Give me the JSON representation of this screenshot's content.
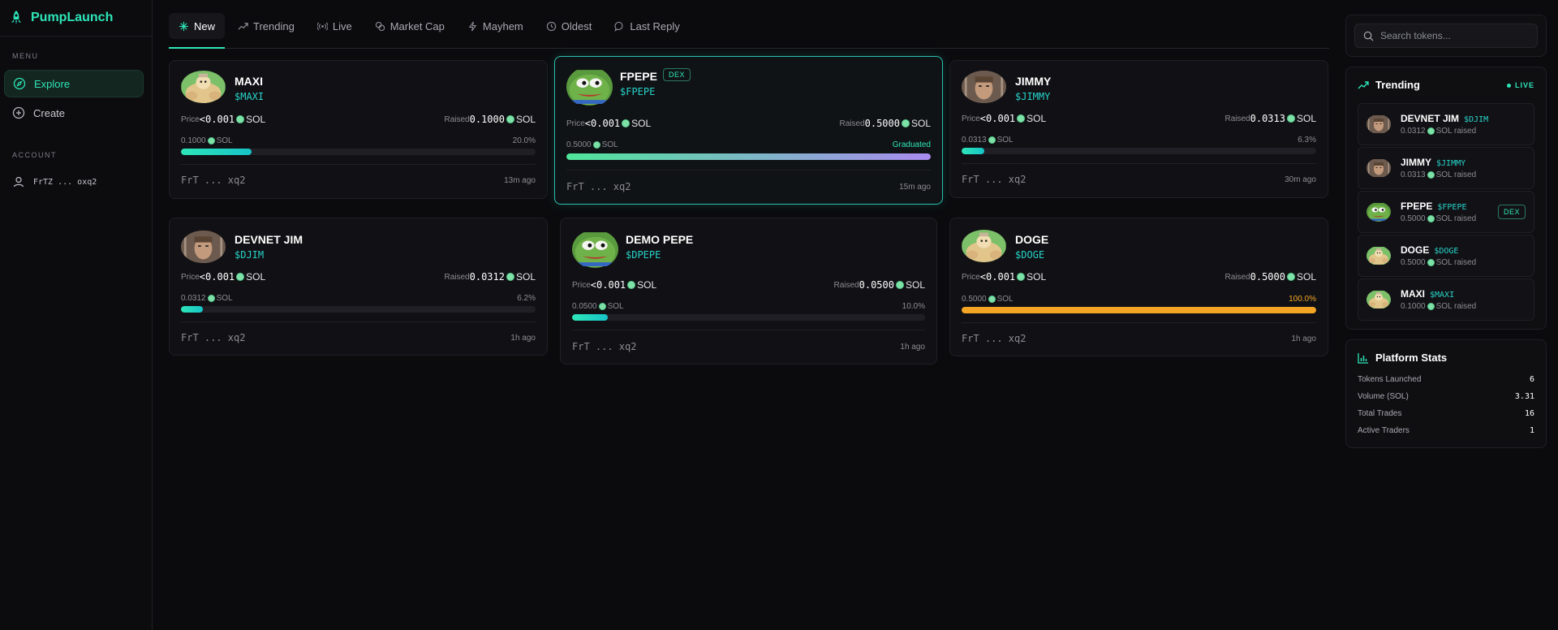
{
  "app": {
    "name": "PumpLaunch"
  },
  "sidebar": {
    "menu_label": "MENU",
    "items": [
      {
        "label": "Explore",
        "icon": "compass-icon"
      },
      {
        "label": "Create",
        "icon": "plus-circle-icon"
      }
    ],
    "account_label": "ACCOUNT",
    "account": {
      "wallet": "FrTZ ... oxq2",
      "icon": "user-icon"
    }
  },
  "tabs": [
    {
      "label": "New",
      "icon": "sparkle-icon"
    },
    {
      "label": "Trending",
      "icon": "trending-icon"
    },
    {
      "label": "Live",
      "icon": "broadcast-icon"
    },
    {
      "label": "Market Cap",
      "icon": "coins-icon"
    },
    {
      "label": "Mayhem",
      "icon": "bolt-icon"
    },
    {
      "label": "Oldest",
      "icon": "clock-icon"
    },
    {
      "label": "Last Reply",
      "icon": "chat-icon"
    }
  ],
  "cards": [
    {
      "name": "MAXI",
      "symbol": "$MAXI",
      "price_label": "Price",
      "price": "<0.001",
      "raised_label": "Raised",
      "raised": "0.1000",
      "unit": "SOL",
      "progress_amount": "0.1000",
      "progress_text": "20.0%",
      "progress": 0.2,
      "creator": "FrT ... xq2",
      "ago": "13m ago",
      "avatar": "doge-avatar"
    },
    {
      "name": "FPEPE",
      "symbol": "$FPEPE",
      "badge": "DEX",
      "price_label": "Price",
      "price": "<0.001",
      "raised_label": "Raised",
      "raised": "0.5000",
      "unit": "SOL",
      "progress_amount": "0.5000",
      "progress_text": "Graduated",
      "progress": 1.0,
      "creator": "FrT ... xq2",
      "ago": "15m ago",
      "avatar": "pepe-avatar"
    },
    {
      "name": "JIMMY",
      "symbol": "$JIMMY",
      "price_label": "Price",
      "price": "<0.001",
      "raised_label": "Raised",
      "raised": "0.0313",
      "unit": "SOL",
      "progress_amount": "0.0313",
      "progress_text": "6.3%",
      "progress": 0.063,
      "creator": "FrT ... xq2",
      "ago": "30m ago",
      "avatar": "jimmy-avatar"
    },
    {
      "name": "DEVNET JIM",
      "symbol": "$DJIM",
      "price_label": "Price",
      "price": "<0.001",
      "raised_label": "Raised",
      "raised": "0.0312",
      "unit": "SOL",
      "progress_amount": "0.0312",
      "progress_text": "6.2%",
      "progress": 0.062,
      "creator": "FrT ... xq2",
      "ago": "1h ago",
      "avatar": "jimmy-avatar"
    },
    {
      "name": "DEMO PEPE",
      "symbol": "$DPEPE",
      "price_label": "Price",
      "price": "<0.001",
      "raised_label": "Raised",
      "raised": "0.0500",
      "unit": "SOL",
      "progress_amount": "0.0500",
      "progress_text": "10.0%",
      "progress": 0.1,
      "creator": "FrT ... xq2",
      "ago": "1h ago",
      "avatar": "pepe-avatar"
    },
    {
      "name": "DOGE",
      "symbol": "$DOGE",
      "price_label": "Price",
      "price": "<0.001",
      "raised_label": "Raised",
      "raised": "0.5000",
      "unit": "SOL",
      "progress_amount": "0.5000",
      "progress_text": "100.0%",
      "progress": 1.0,
      "creator": "FrT ... xq2",
      "ago": "1h ago",
      "avatar": "doge-avatar"
    }
  ],
  "search": {
    "placeholder": "Search tokens..."
  },
  "trending": {
    "title": "Trending",
    "live_label": "LIVE",
    "items": [
      {
        "name": "DEVNET JIM",
        "symbol": "$DJIM",
        "raised": "0.0312",
        "raised_suffix": "SOL raised",
        "avatar": "jimmy-avatar"
      },
      {
        "name": "JIMMY",
        "symbol": "$JIMMY",
        "raised": "0.0313",
        "raised_suffix": "SOL raised",
        "avatar": "jimmy-avatar"
      },
      {
        "name": "FPEPE",
        "symbol": "$FPEPE",
        "raised": "0.5000",
        "raised_suffix": "SOL raised",
        "badge": "DEX",
        "avatar": "pepe-avatar"
      },
      {
        "name": "DOGE",
        "symbol": "$DOGE",
        "raised": "0.5000",
        "raised_suffix": "SOL raised",
        "avatar": "doge-avatar"
      },
      {
        "name": "MAXI",
        "symbol": "$MAXI",
        "raised": "0.1000",
        "raised_suffix": "SOL raised",
        "avatar": "doge-avatar"
      }
    ]
  },
  "stats": {
    "title": "Platform Stats",
    "rows": [
      {
        "label": "Tokens Launched",
        "value": "6"
      },
      {
        "label": "Volume (SOL)",
        "value": "3.31"
      },
      {
        "label": "Total Trades",
        "value": "16"
      },
      {
        "label": "Active Traders",
        "value": "1"
      }
    ]
  },
  "colors": {
    "accent": "#2ee6b8",
    "symbol": "#27d3c9",
    "gold": "#f5a524",
    "background": "#0b0b0e"
  }
}
